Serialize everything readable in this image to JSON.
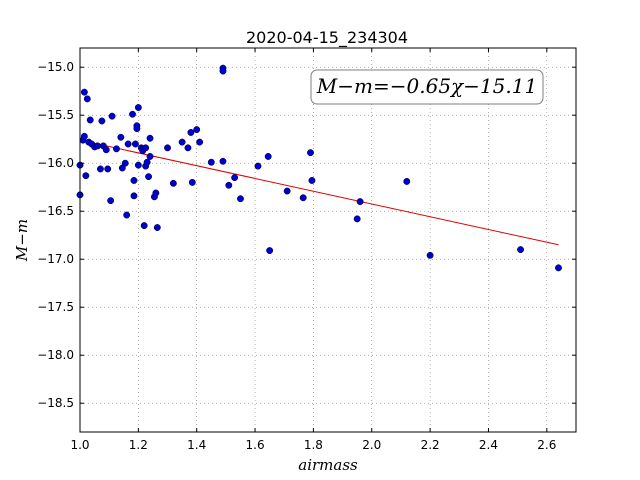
{
  "chart_data": {
    "type": "scatter",
    "title": "2020-04-15_234304",
    "xlabel": "airmass",
    "ylabel": "M−m",
    "annotation": "M−m=−0.65χ−15.11",
    "xlim": [
      1.0,
      2.7
    ],
    "ylim": [
      -18.8,
      -14.8
    ],
    "y_inverted": false,
    "xticks": [
      1.0,
      1.2,
      1.4,
      1.6,
      1.8,
      2.0,
      2.2,
      2.4,
      2.6
    ],
    "yticks": [
      -15.0,
      -15.5,
      -16.0,
      -16.5,
      -17.0,
      -17.5,
      -18.0,
      -18.5
    ],
    "xtick_labels": [
      "1.0",
      "1.2",
      "1.4",
      "1.6",
      "1.8",
      "2.0",
      "2.2",
      "2.4",
      "2.6"
    ],
    "ytick_labels": [
      "−15.0",
      "−15.5",
      "−16.0",
      "−16.5",
      "−17.0",
      "−17.5",
      "−18.0",
      "−18.5"
    ],
    "grid": true,
    "marker_color": "#0000cc",
    "fit_color": "#dd0000",
    "fit_line": {
      "x": [
        1.0,
        2.64
      ],
      "y": [
        -15.76,
        -16.85
      ]
    },
    "points": [
      [
        1.0,
        -16.02
      ],
      [
        1.0,
        -16.33
      ],
      [
        1.01,
        -15.76
      ],
      [
        1.015,
        -15.72
      ],
      [
        1.015,
        -15.26
      ],
      [
        1.02,
        -16.13
      ],
      [
        1.025,
        -15.33
      ],
      [
        1.03,
        -15.78
      ],
      [
        1.035,
        -15.55
      ],
      [
        1.04,
        -15.8
      ],
      [
        1.05,
        -15.83
      ],
      [
        1.06,
        -15.82
      ],
      [
        1.07,
        -16.06
      ],
      [
        1.075,
        -15.56
      ],
      [
        1.08,
        -15.82
      ],
      [
        1.09,
        -15.86
      ],
      [
        1.095,
        -16.06
      ],
      [
        1.105,
        -16.39
      ],
      [
        1.11,
        -15.51
      ],
      [
        1.125,
        -15.85
      ],
      [
        1.14,
        -15.73
      ],
      [
        1.145,
        -16.05
      ],
      [
        1.155,
        -16.0
      ],
      [
        1.16,
        -16.54
      ],
      [
        1.165,
        -15.8
      ],
      [
        1.18,
        -15.49
      ],
      [
        1.185,
        -16.18
      ],
      [
        1.185,
        -16.34
      ],
      [
        1.19,
        -15.8
      ],
      [
        1.195,
        -15.61
      ],
      [
        1.195,
        -15.64
      ],
      [
        1.2,
        -15.42
      ],
      [
        1.2,
        -16.02
      ],
      [
        1.21,
        -15.84
      ],
      [
        1.215,
        -15.87
      ],
      [
        1.22,
        -16.65
      ],
      [
        1.225,
        -16.03
      ],
      [
        1.225,
        -15.84
      ],
      [
        1.23,
        -15.99
      ],
      [
        1.235,
        -16.14
      ],
      [
        1.24,
        -15.93
      ],
      [
        1.24,
        -15.74
      ],
      [
        1.255,
        -16.35
      ],
      [
        1.26,
        -16.31
      ],
      [
        1.265,
        -16.67
      ],
      [
        1.3,
        -15.84
      ],
      [
        1.32,
        -16.21
      ],
      [
        1.35,
        -15.78
      ],
      [
        1.37,
        -15.84
      ],
      [
        1.38,
        -15.68
      ],
      [
        1.385,
        -16.2
      ],
      [
        1.4,
        -15.65
      ],
      [
        1.41,
        -15.78
      ],
      [
        1.45,
        -15.99
      ],
      [
        1.49,
        -15.01
      ],
      [
        1.49,
        -15.04
      ],
      [
        1.49,
        -15.98
      ],
      [
        1.51,
        -16.23
      ],
      [
        1.53,
        -16.15
      ],
      [
        1.55,
        -16.37
      ],
      [
        1.61,
        -16.03
      ],
      [
        1.645,
        -15.93
      ],
      [
        1.65,
        -16.91
      ],
      [
        1.71,
        -16.29
      ],
      [
        1.765,
        -16.36
      ],
      [
        1.79,
        -15.89
      ],
      [
        1.795,
        -16.18
      ],
      [
        1.95,
        -16.58
      ],
      [
        1.96,
        -16.4
      ],
      [
        2.12,
        -16.19
      ],
      [
        2.2,
        -16.96
      ],
      [
        2.51,
        -16.9
      ],
      [
        2.64,
        -17.09
      ]
    ]
  }
}
